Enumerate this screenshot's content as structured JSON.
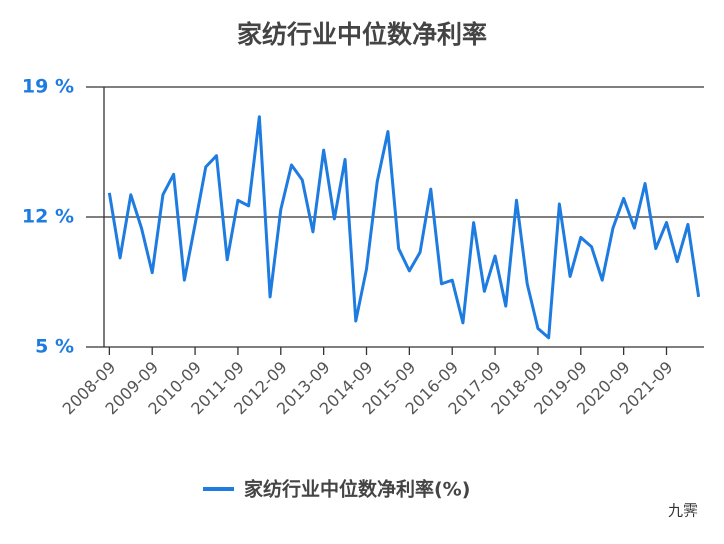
{
  "chart_data": {
    "type": "line",
    "title": "家纺行业中位数净利率",
    "categories": [
      "2008-09",
      null,
      null,
      null,
      "2009-09",
      null,
      null,
      null,
      "2010-09",
      null,
      null,
      null,
      "2011-09",
      null,
      null,
      null,
      "2012-09",
      null,
      null,
      null,
      "2013-09",
      null,
      null,
      null,
      "2014-09",
      null,
      null,
      null,
      "2015-09",
      null,
      null,
      null,
      "2016-09",
      null,
      null,
      null,
      "2017-09",
      null,
      null,
      null,
      "2018-09",
      null,
      null,
      null,
      "2019-09",
      null,
      null,
      null,
      "2020-09",
      null,
      null,
      null,
      "2021-09",
      null,
      null,
      null
    ],
    "series": [
      {
        "name": "家纺行业中位数净利率(%)",
        "color": "#1e7be0",
        "values": [
          13.3,
          9.8,
          13.2,
          11.4,
          9.0,
          13.2,
          14.3,
          8.6,
          11.6,
          14.7,
          15.3,
          9.7,
          12.9,
          12.6,
          17.4,
          7.7,
          12.4,
          14.8,
          14.0,
          11.2,
          15.6,
          11.9,
          15.1,
          6.4,
          9.2,
          13.9,
          16.6,
          10.3,
          9.1,
          10.1,
          13.5,
          8.4,
          8.6,
          6.3,
          11.7,
          8.0,
          9.9,
          7.2,
          12.9,
          8.4,
          6.0,
          5.5,
          12.7,
          8.8,
          10.9,
          10.4,
          8.6,
          11.4,
          13.0,
          11.4,
          13.8,
          10.3,
          11.7,
          9.6,
          11.6,
          7.7
        ]
      }
    ],
    "ylim": [
      5,
      19
    ],
    "yticks": [
      {
        "value": 5,
        "label": "5 %"
      },
      {
        "value": 12,
        "label": "12 %"
      },
      {
        "value": 19,
        "label": "19 %"
      }
    ],
    "grid": true,
    "legend": "bottom",
    "watermark": "九霁"
  }
}
